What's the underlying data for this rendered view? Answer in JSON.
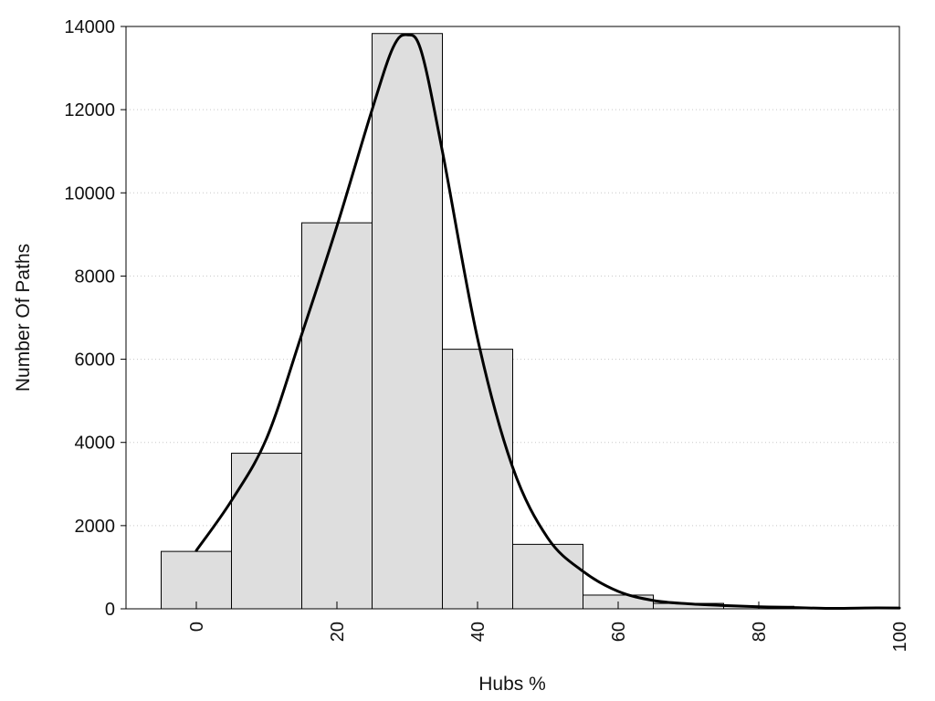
{
  "chart_data": {
    "type": "bar",
    "xlabel": "Hubs %",
    "ylabel": "Number Of Paths",
    "xlim": [
      -10,
      100
    ],
    "ylim": [
      0,
      14000
    ],
    "x_ticks": [
      0,
      20,
      40,
      60,
      80,
      100
    ],
    "y_ticks": [
      0,
      2000,
      4000,
      6000,
      8000,
      10000,
      12000,
      14000
    ],
    "grid": true,
    "bins": [
      {
        "x": 0,
        "value": 1380
      },
      {
        "x": 10,
        "value": 3740
      },
      {
        "x": 20,
        "value": 9280
      },
      {
        "x": 30,
        "value": 13830
      },
      {
        "x": 40,
        "value": 6240
      },
      {
        "x": 50,
        "value": 1550
      },
      {
        "x": 60,
        "value": 330
      },
      {
        "x": 70,
        "value": 130
      },
      {
        "x": 80,
        "value": 60
      },
      {
        "x": 90,
        "value": 20
      }
    ],
    "bin_width": 10,
    "curve": {
      "x": [
        0,
        5,
        10,
        15,
        20,
        25,
        28,
        30,
        32,
        35,
        40,
        45,
        50,
        55,
        60,
        65,
        70,
        75,
        80,
        85,
        90,
        95,
        100
      ],
      "y": [
        1400,
        2600,
        4100,
        6600,
        9200,
        12000,
        13500,
        13800,
        13400,
        11000,
        6500,
        3400,
        1700,
        900,
        420,
        200,
        120,
        80,
        50,
        30,
        10,
        20,
        20
      ]
    }
  }
}
